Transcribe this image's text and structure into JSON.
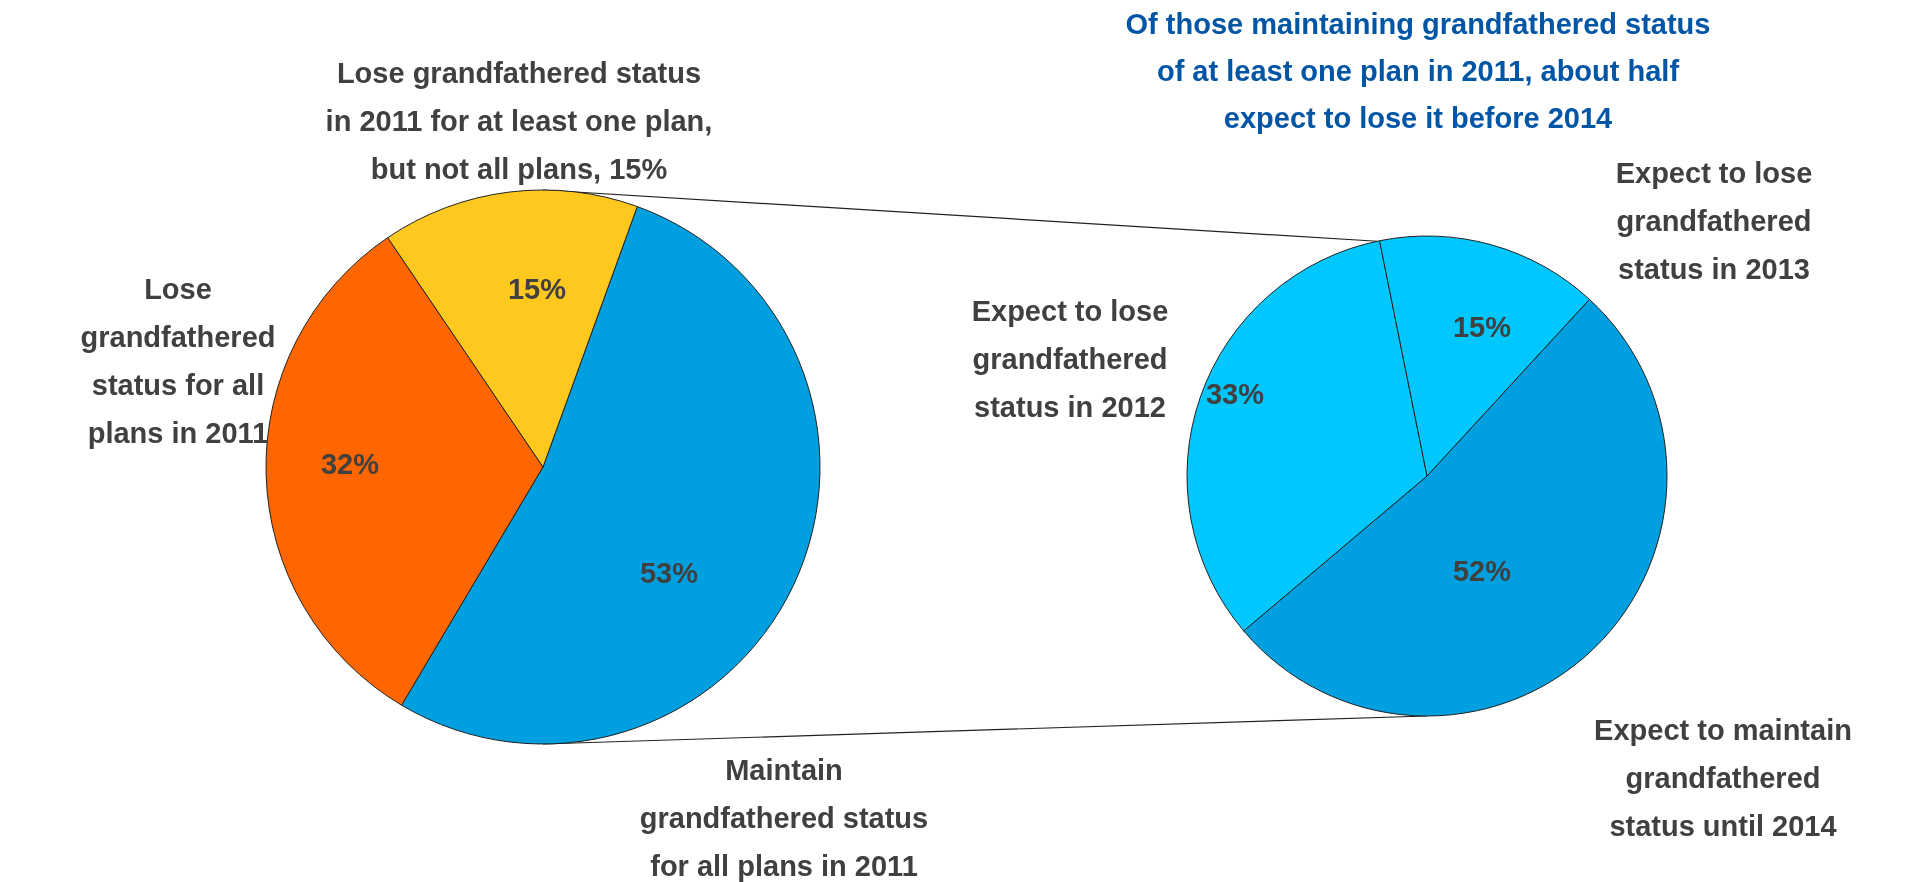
{
  "chart_data": [
    {
      "type": "pie",
      "categories": [
        "Maintain grandfathered status for all plans in 2011",
        "Lose grandfathered status for all plans in 2011",
        "Lose grandfathered status in 2011 for at least one plan, but not all plans, 15%"
      ],
      "values": [
        53,
        32,
        15
      ],
      "colors": [
        "#00a0e0",
        "#ff6600",
        "#ffc81e"
      ],
      "value_labels": [
        "53%",
        "32%",
        "15%"
      ]
    },
    {
      "type": "pie",
      "title": "Of those maintaining grandfathered status of at least one plan in 2011, about half expect to lose it before 2014",
      "categories": [
        "Expect to maintain grandfathered status until 2014",
        "Expect to lose grandfathered status in 2012",
        "Expect to lose grandfathered status in 2013"
      ],
      "values": [
        52,
        33,
        15
      ],
      "colors": [
        "#00a0e0",
        "#00c8ff",
        "#00c8ff"
      ],
      "value_labels": [
        "52%",
        "33%",
        "15%"
      ]
    }
  ]
}
